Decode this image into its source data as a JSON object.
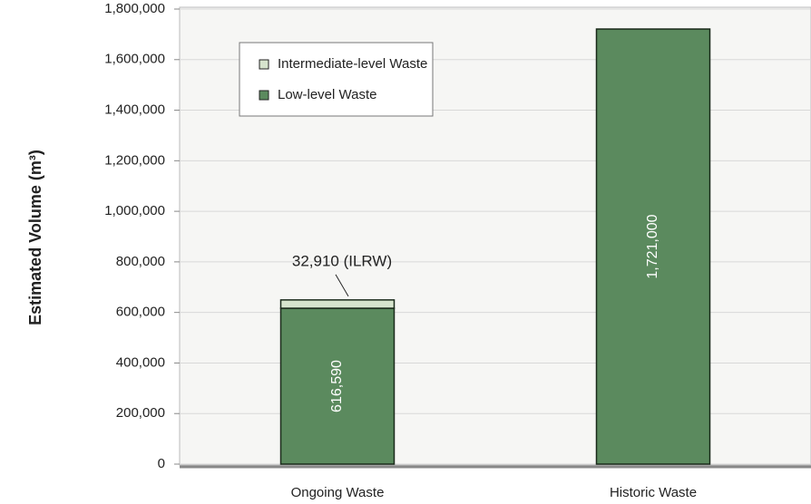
{
  "chart_data": {
    "type": "stacked_bar",
    "y_label": "Estimated Volume (m³)",
    "categories": [
      "Ongoing Waste",
      "Historic Waste"
    ],
    "series": [
      {
        "name": "Low-level Waste",
        "color": "#5b8a5e",
        "values": [
          616590,
          1721000
        ],
        "value_labels": [
          "616,590",
          "1,721,000"
        ]
      },
      {
        "name": "Intermediate-level Waste",
        "color": "#d6e4cd",
        "values": [
          32910,
          null
        ],
        "value_labels": [
          "32,910 (ILRW)",
          null
        ]
      }
    ],
    "ylim": [
      0,
      1800000
    ],
    "yticks": [
      0,
      {
        "value": 200000,
        "label": "200,000"
      },
      {
        "value": 400000,
        "label": "400,000"
      },
      {
        "value": 600000,
        "label": "600,000"
      },
      {
        "value": 800000,
        "label": "800,000"
      },
      {
        "value": 1000000,
        "label": "1,000,000"
      },
      {
        "value": 1200000,
        "label": "1,200,000"
      },
      {
        "value": 1400000,
        "label": "1,400,000"
      },
      {
        "value": 1600000,
        "label": "1,600,000"
      },
      {
        "value": 1800000,
        "label": "1,800,000"
      }
    ],
    "grid": true,
    "legend": "upper left"
  }
}
